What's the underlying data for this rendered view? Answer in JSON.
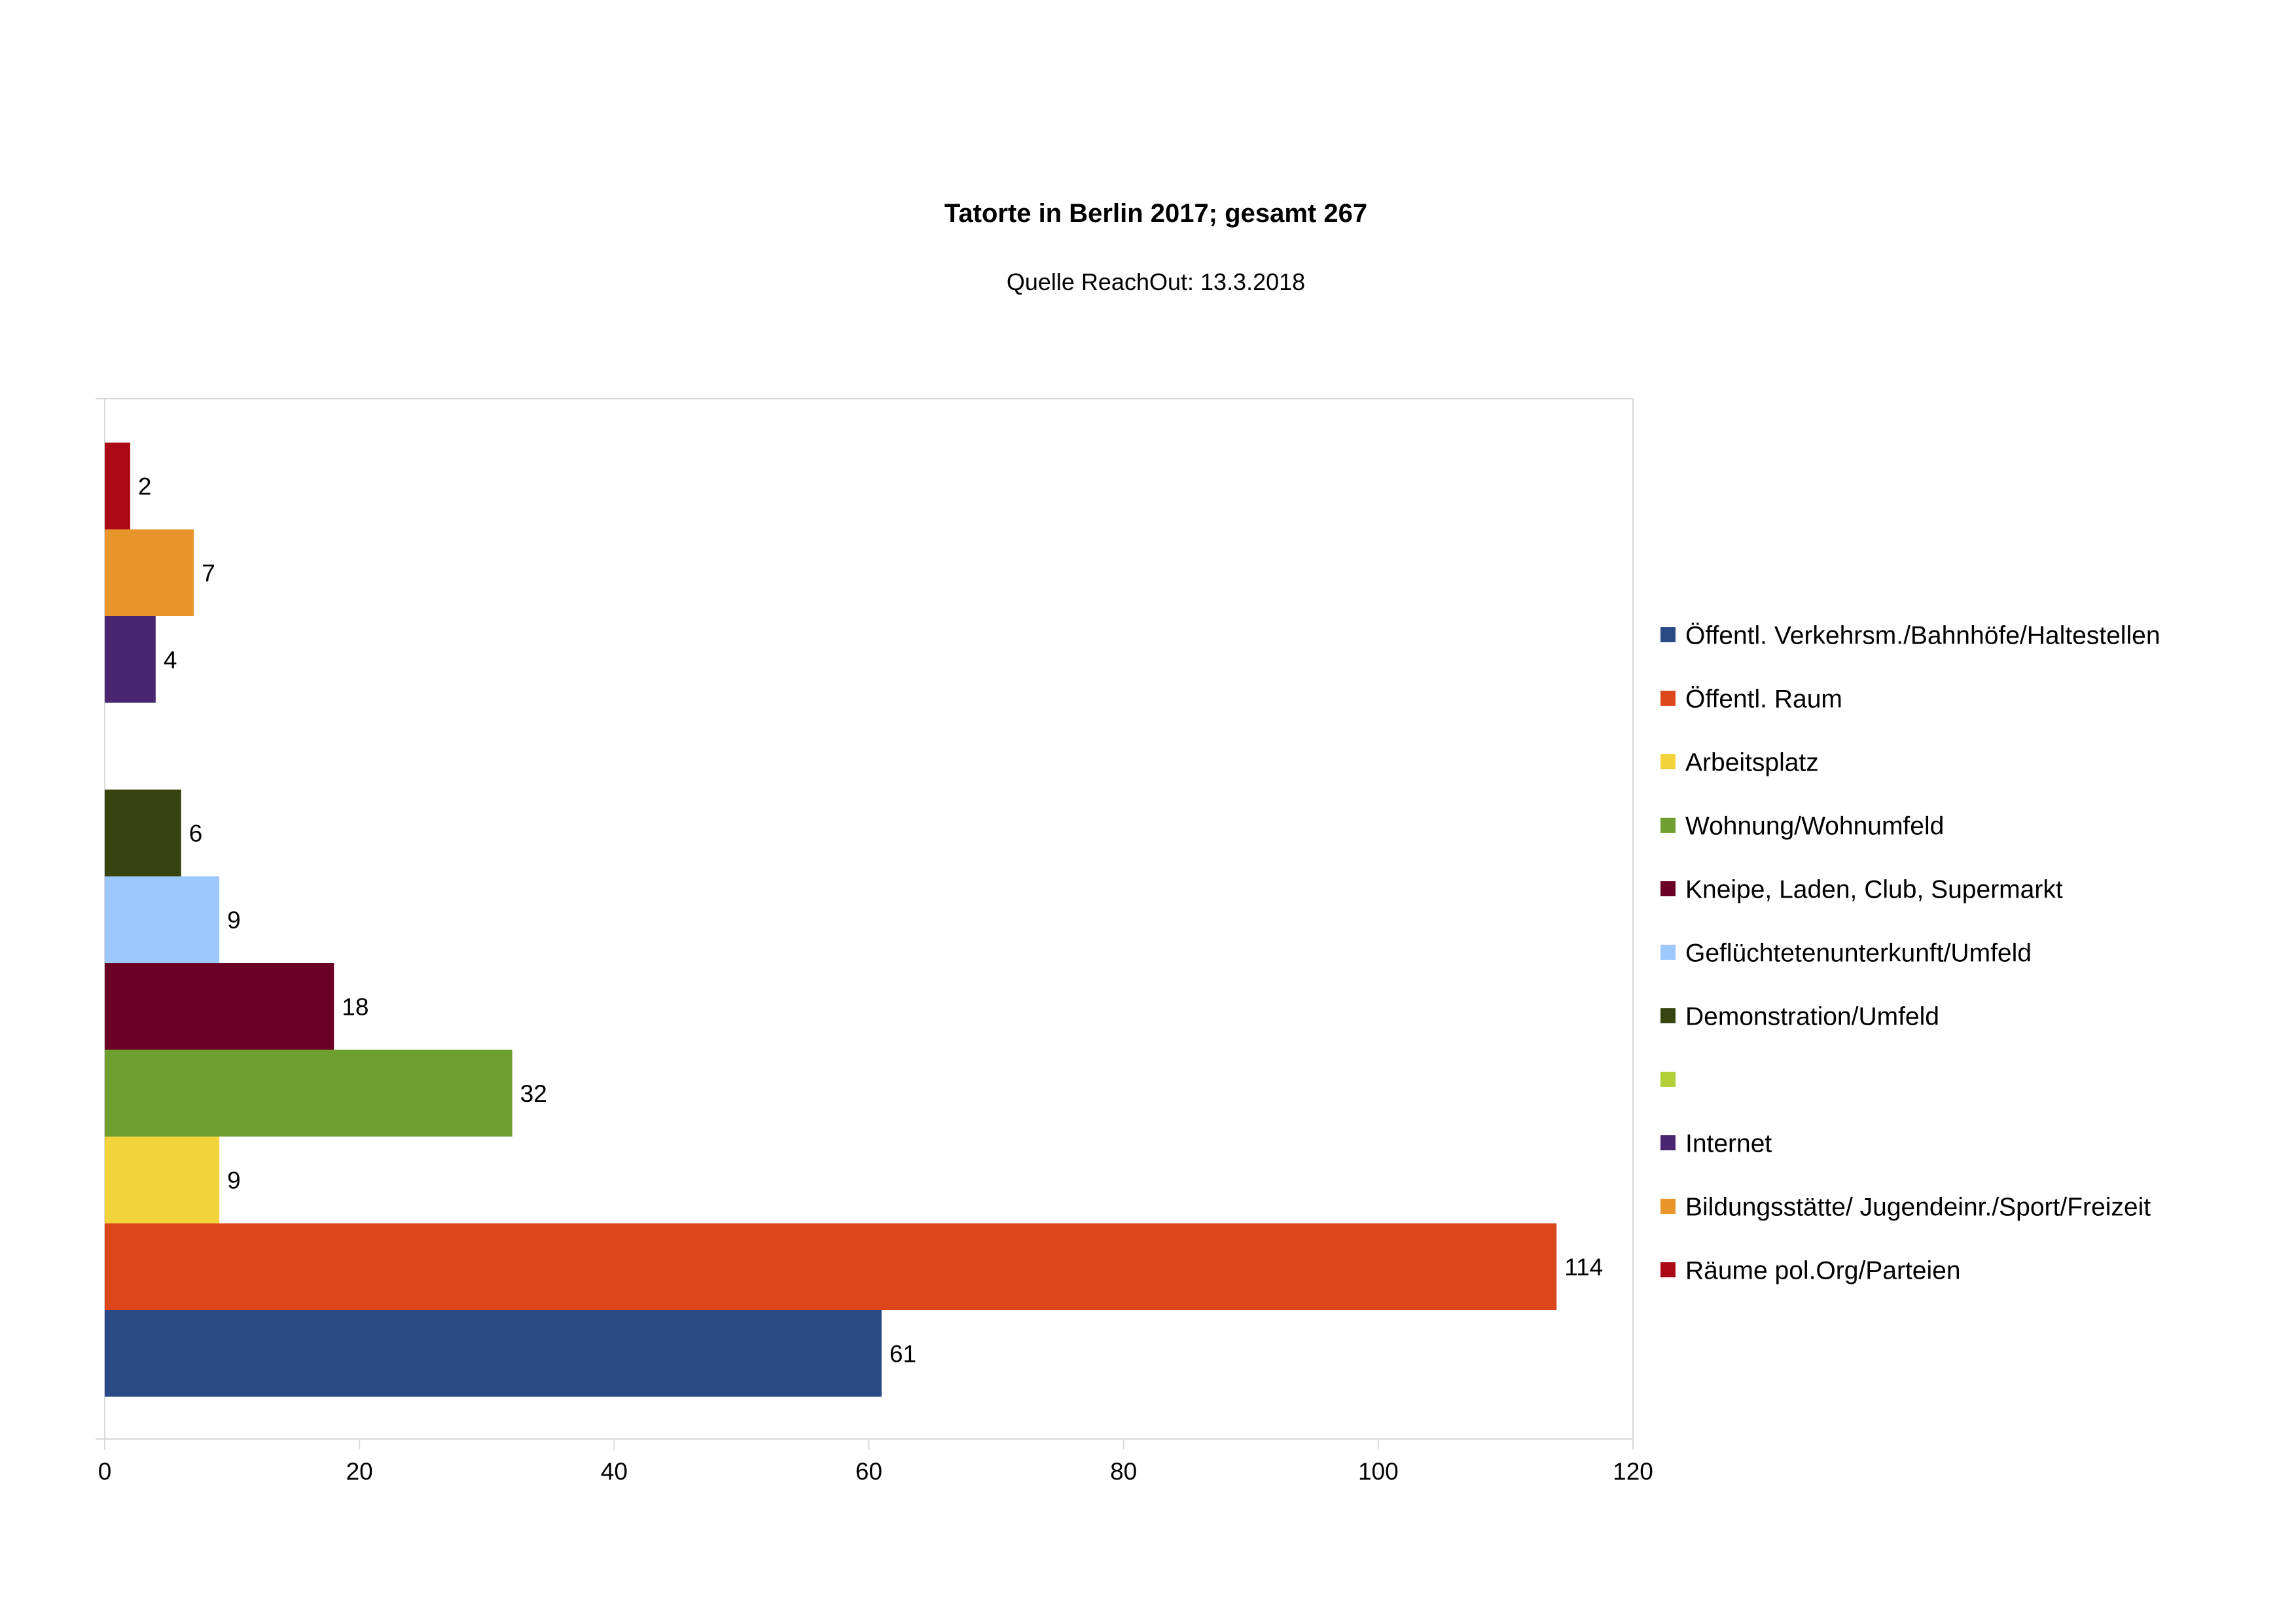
{
  "chart_data": {
    "type": "bar",
    "orientation": "horizontal",
    "title": "Tatorte in Berlin 2017; gesamt 267",
    "subtitle": "Quelle ReachOut: 13.3.2018",
    "xlabel": "",
    "ylabel": "",
    "xlim": [
      0,
      120
    ],
    "x_ticks": [
      "0",
      "20",
      "40",
      "60",
      "80",
      "100",
      "120"
    ],
    "grid": false,
    "legend_position": "right",
    "series": [
      {
        "name": "Öffentl. Verkehrsm./Bahnhöfe/Haltestellen",
        "value": 61,
        "color": "#2a4a86"
      },
      {
        "name": "Öffentl. Raum",
        "value": 114,
        "color": "#dd461a"
      },
      {
        "name": "Arbeitsplatz",
        "value": 9,
        "color": "#f3d33b"
      },
      {
        "name": "Wohnung/Wohnumfeld",
        "value": 32,
        "color": "#6f9e31"
      },
      {
        "name": "Kneipe,  Laden, Club, Supermarkt",
        "value": 18,
        "color": "#6b0027"
      },
      {
        "name": "Geflüchtetenunterkunft/Umfeld",
        "value": 9,
        "color": "#9dc8fc"
      },
      {
        "name": "Demonstration/Umfeld",
        "value": 6,
        "color": "#384410"
      },
      {
        "name": "",
        "value": null,
        "color": "#b3cf38"
      },
      {
        "name": "Internet",
        "value": 4,
        "color": "#4b2670"
      },
      {
        "name": "Bildungsstätte/ Jugendeinr./Sport/Freizeit",
        "value": 7,
        "color": "#e8962b"
      },
      {
        "name": "Räume pol.Org/Parteien",
        "value": 2,
        "color": "#ab0915"
      }
    ]
  }
}
